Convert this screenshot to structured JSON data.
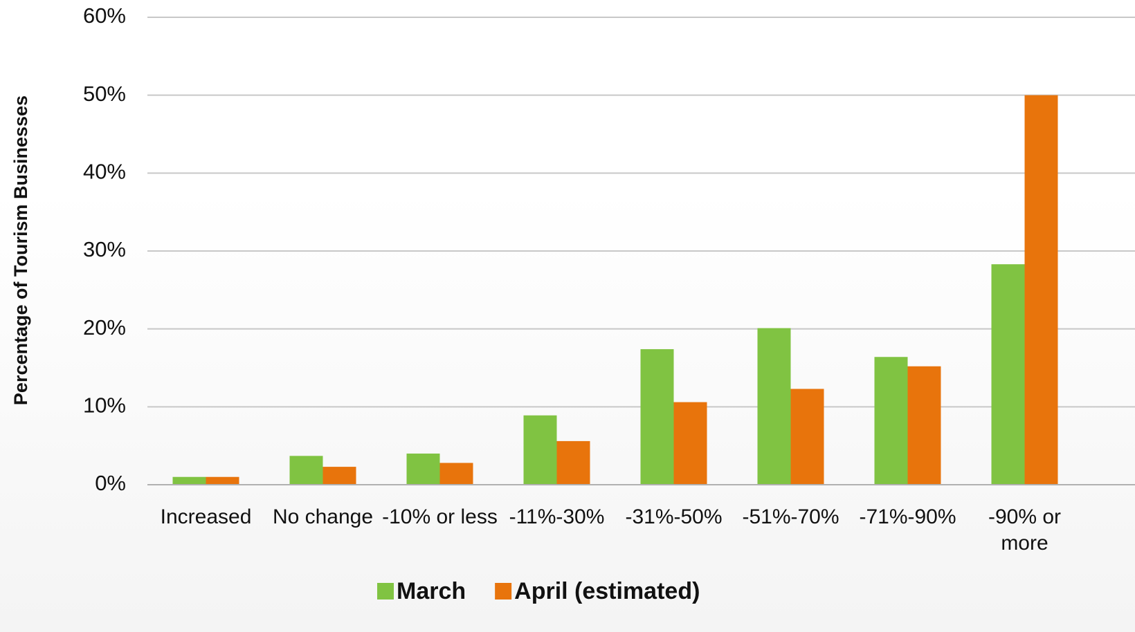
{
  "chart_data": {
    "type": "bar",
    "y_axis_label": "Percentage of Tourism Businesses",
    "categories": [
      "Increased",
      "No change",
      "-10% or less",
      "-11%-30%",
      "-31%-50%",
      "-51%-70%",
      "-71%-90%",
      "-90% or more"
    ],
    "series": [
      {
        "name": "March",
        "color": "#80c342",
        "values": [
          1.0,
          3.7,
          4.0,
          8.9,
          17.4,
          20.1,
          16.4,
          28.3
        ]
      },
      {
        "name": "April (estimated)",
        "color": "#e8740c",
        "values": [
          1.0,
          2.3,
          2.8,
          5.6,
          10.6,
          12.3,
          15.2,
          50.0
        ]
      }
    ],
    "ylim": [
      0,
      60
    ],
    "yticks": [
      {
        "value": 0,
        "label": "0%"
      },
      {
        "value": 10,
        "label": "10%"
      },
      {
        "value": 20,
        "label": "20%"
      },
      {
        "value": 30,
        "label": "30%"
      },
      {
        "value": 40,
        "label": "40%"
      },
      {
        "value": 50,
        "label": "50%"
      },
      {
        "value": 60,
        "label": "60%"
      }
    ],
    "grid": true,
    "legend": "bottom"
  }
}
